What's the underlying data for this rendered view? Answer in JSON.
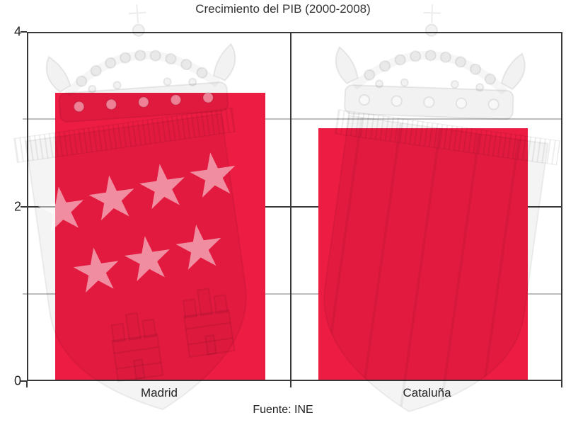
{
  "chart_data": {
    "type": "bar",
    "title": "Crecimiento del PIB (2000-2008)",
    "source": "Fuente: INE",
    "categories": [
      "Madrid",
      "Cataluña"
    ],
    "values": [
      3.3,
      2.9
    ],
    "ylim": [
      0,
      4
    ],
    "yticks": [
      {
        "value": 4,
        "label": "4"
      },
      {
        "value": 2,
        "label": "2"
      },
      {
        "value": 0,
        "label": "0"
      }
    ],
    "minor_gridlines": [
      3,
      1
    ],
    "grid": "horizontal",
    "legend": "none",
    "bar_color": "#ED1C43",
    "axis_color": "#383838",
    "minor_grid_color": "#bdbdbd",
    "watermark_color": "#ebebeb",
    "watermarks": [
      "escudo-comunidad-de-madrid",
      "escudo-cataluna"
    ]
  }
}
